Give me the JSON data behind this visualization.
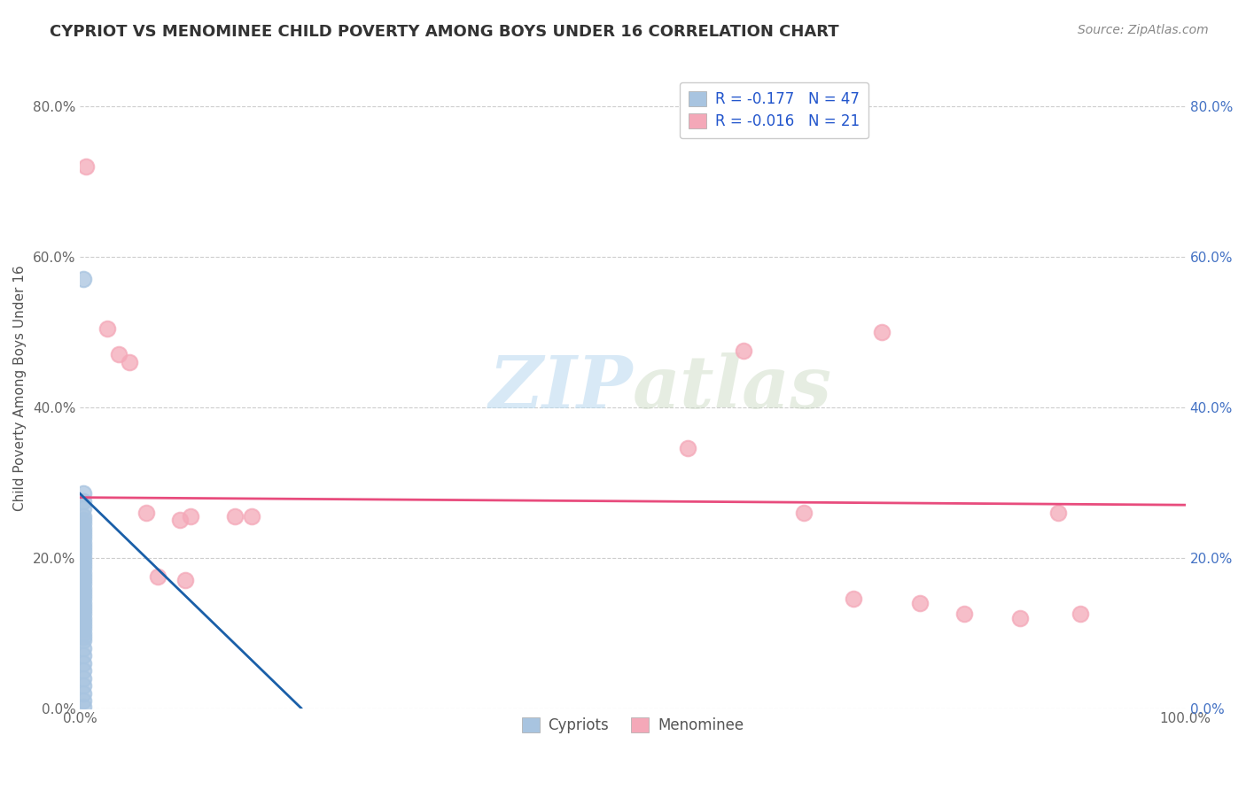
{
  "title": "CYPRIOT VS MENOMINEE CHILD POVERTY AMONG BOYS UNDER 16 CORRELATION CHART",
  "source": "Source: ZipAtlas.com",
  "ylabel": "Child Poverty Among Boys Under 16",
  "xlim": [
    0,
    100
  ],
  "ylim": [
    0,
    85
  ],
  "xticks": [
    0,
    10,
    20,
    30,
    40,
    50,
    60,
    70,
    80,
    90,
    100
  ],
  "xtick_labels": [
    "0.0%",
    "",
    "",
    "",
    "",
    "",
    "",
    "",
    "",
    "",
    "100.0%"
  ],
  "ytick_labels": [
    "0.0%",
    "20.0%",
    "40.0%",
    "60.0%",
    "80.0%"
  ],
  "yticks": [
    0,
    20,
    40,
    60,
    80
  ],
  "blue_label": "Cypriots",
  "pink_label": "Menominee",
  "blue_R": "-0.177",
  "blue_N": "47",
  "pink_R": "-0.016",
  "pink_N": "21",
  "blue_color": "#a8c4e0",
  "pink_color": "#f4a8b8",
  "blue_line_color": "#1a5fa8",
  "pink_line_color": "#e84c7d",
  "blue_scatter": [
    [
      0.3,
      57.0
    ],
    [
      0.3,
      28.5
    ],
    [
      0.3,
      27.5
    ],
    [
      0.3,
      26.5
    ],
    [
      0.3,
      25.5
    ],
    [
      0.3,
      25.0
    ],
    [
      0.3,
      24.5
    ],
    [
      0.3,
      24.0
    ],
    [
      0.3,
      23.5
    ],
    [
      0.3,
      23.0
    ],
    [
      0.3,
      22.5
    ],
    [
      0.3,
      22.0
    ],
    [
      0.3,
      21.5
    ],
    [
      0.3,
      21.0
    ],
    [
      0.3,
      20.5
    ],
    [
      0.3,
      20.0
    ],
    [
      0.3,
      19.5
    ],
    [
      0.3,
      19.0
    ],
    [
      0.3,
      18.5
    ],
    [
      0.3,
      18.0
    ],
    [
      0.3,
      17.5
    ],
    [
      0.3,
      17.0
    ],
    [
      0.3,
      16.5
    ],
    [
      0.3,
      16.0
    ],
    [
      0.3,
      15.5
    ],
    [
      0.3,
      15.0
    ],
    [
      0.3,
      14.5
    ],
    [
      0.3,
      14.0
    ],
    [
      0.3,
      13.5
    ],
    [
      0.3,
      13.0
    ],
    [
      0.3,
      12.5
    ],
    [
      0.3,
      12.0
    ],
    [
      0.3,
      11.5
    ],
    [
      0.3,
      11.0
    ],
    [
      0.3,
      10.5
    ],
    [
      0.3,
      10.0
    ],
    [
      0.3,
      9.5
    ],
    [
      0.3,
      9.0
    ],
    [
      0.3,
      8.0
    ],
    [
      0.3,
      7.0
    ],
    [
      0.3,
      6.0
    ],
    [
      0.3,
      5.0
    ],
    [
      0.3,
      4.0
    ],
    [
      0.3,
      3.0
    ],
    [
      0.3,
      2.0
    ],
    [
      0.3,
      1.0
    ],
    [
      0.3,
      0.2
    ]
  ],
  "pink_scatter": [
    [
      0.5,
      72.0
    ],
    [
      2.5,
      50.5
    ],
    [
      3.5,
      47.0
    ],
    [
      4.5,
      46.0
    ],
    [
      6.0,
      26.0
    ],
    [
      9.0,
      25.0
    ],
    [
      10.0,
      25.5
    ],
    [
      14.0,
      25.5
    ],
    [
      15.5,
      25.5
    ],
    [
      7.0,
      17.5
    ],
    [
      9.5,
      17.0
    ],
    [
      55.0,
      34.5
    ],
    [
      60.0,
      47.5
    ],
    [
      65.5,
      26.0
    ],
    [
      70.0,
      14.5
    ],
    [
      72.5,
      50.0
    ],
    [
      76.0,
      14.0
    ],
    [
      80.0,
      12.5
    ],
    [
      85.0,
      12.0
    ],
    [
      88.5,
      26.0
    ],
    [
      90.5,
      12.5
    ]
  ],
  "blue_trend_x": [
    0,
    20
  ],
  "blue_trend_y": [
    28.5,
    0
  ],
  "pink_trend_x": [
    0,
    100
  ],
  "pink_trend_y": [
    28.0,
    27.0
  ],
  "watermark": "ZIPatlas",
  "background_color": "#ffffff",
  "grid_color": "#c8c8c8"
}
